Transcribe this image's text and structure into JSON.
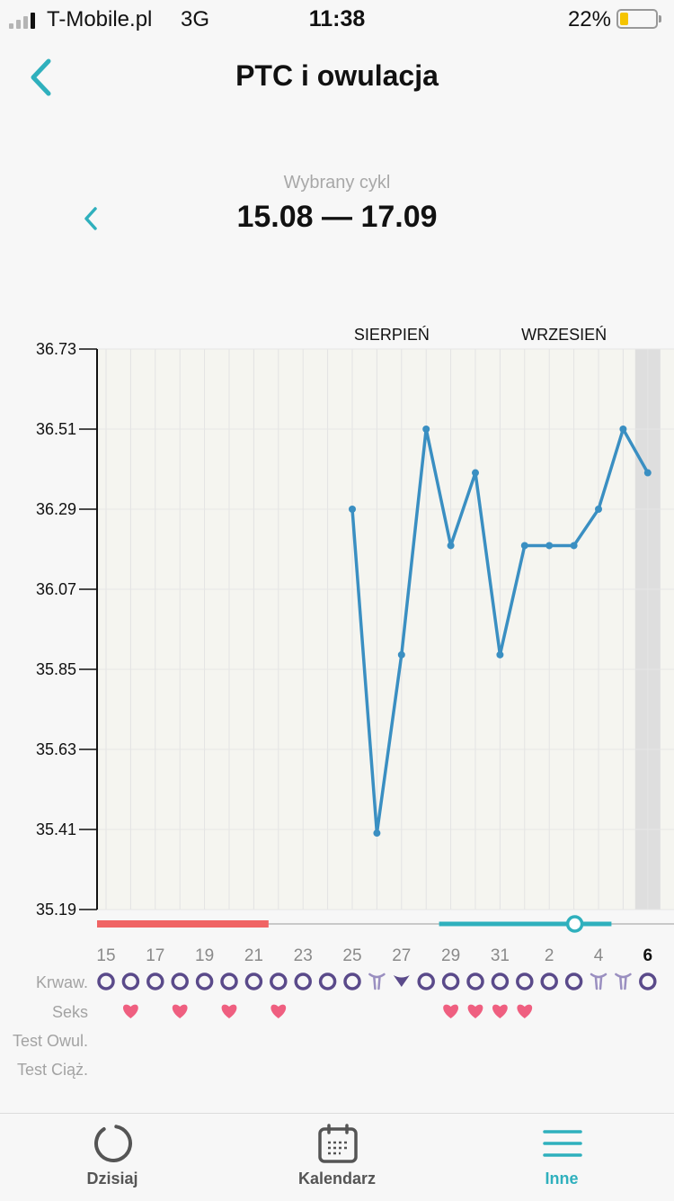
{
  "status_bar": {
    "carrier": "T-Mobile.pl",
    "network": "3G",
    "time": "11:38",
    "battery": "22%",
    "battery_level": 0.22
  },
  "header": {
    "title": "PTC i owulacja",
    "back_icon": "chevron-left-icon"
  },
  "cycle": {
    "label": "Wybrany cykl",
    "range": "15.08 — 17.09"
  },
  "colors": {
    "accent": "#2fb0bd",
    "line": "#3a8fc2",
    "period": "#f06464",
    "circle": "#5a4a8a",
    "heart": "#ef5f80"
  },
  "chart_data": {
    "type": "line",
    "y_ticks": [
      "36.73",
      "36.51",
      "36.29",
      "36.07",
      "35.85",
      "35.63",
      "35.41",
      "35.19"
    ],
    "ylim": [
      35.19,
      36.73
    ],
    "months": [
      "SIERPIEŃ",
      "WRZESIEŃ"
    ],
    "x_tick_labels": [
      "15",
      "17",
      "19",
      "21",
      "23",
      "25",
      "27",
      "29",
      "31",
      "2",
      "4",
      "6"
    ],
    "days": [
      "15",
      "16",
      "17",
      "18",
      "19",
      "20",
      "21",
      "22",
      "23",
      "24",
      "25",
      "26",
      "27",
      "28",
      "29",
      "30",
      "31",
      "1",
      "2",
      "3",
      "4",
      "5",
      "6"
    ],
    "series": [
      {
        "values": [
          null,
          null,
          null,
          null,
          null,
          null,
          null,
          null,
          null,
          null,
          36.29,
          35.4,
          35.89,
          36.51,
          36.19,
          36.39,
          35.89,
          36.19,
          36.19,
          36.19,
          36.29,
          36.51,
          36.39
        ]
      }
    ],
    "today_index": 22,
    "grid": true,
    "period_days": 7,
    "fertile_window": {
      "start": "29",
      "ovulation": "3",
      "end": "5"
    },
    "row_labels": [
      "Krwaw.",
      "Seks",
      "Test Owul.",
      "Test Ciąż."
    ],
    "bleeding": [
      "circle",
      "circle",
      "circle",
      "circle",
      "circle",
      "circle",
      "circle",
      "circle",
      "circle",
      "circle",
      "circle",
      "spotting",
      "drop",
      "circle",
      "circle",
      "circle",
      "circle",
      "circle",
      "circle",
      "circle",
      "spotting",
      "spotting",
      "circle"
    ],
    "sex": [
      false,
      true,
      false,
      true,
      false,
      true,
      false,
      true,
      false,
      false,
      false,
      false,
      false,
      false,
      true,
      true,
      true,
      true,
      false,
      false,
      false,
      false,
      false
    ]
  },
  "tabs": [
    {
      "label": "Dzisiaj",
      "icon": "spinner-icon",
      "active": false
    },
    {
      "label": "Kalendarz",
      "icon": "calendar-icon",
      "active": false
    },
    {
      "label": "Inne",
      "icon": "menu-icon",
      "active": true
    }
  ]
}
